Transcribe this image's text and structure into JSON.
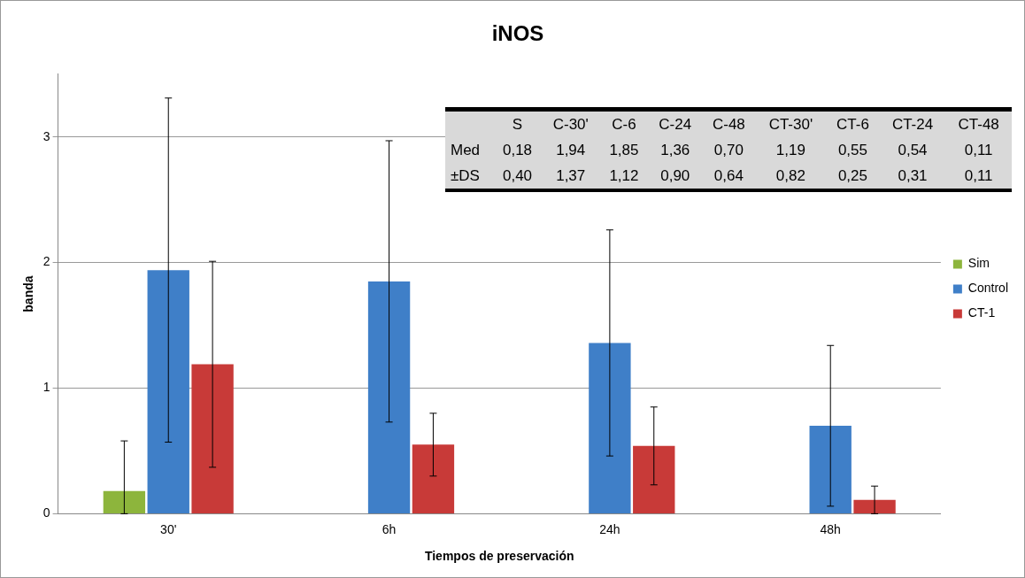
{
  "chart_data": [
    {
      "type": "bar",
      "title": "iNOS",
      "xlabel": "Tiempos de preservación",
      "ylabel": "banda",
      "categories": [
        "30'",
        "6h",
        "24h",
        "48h"
      ],
      "series": [
        {
          "name": "Sim",
          "color": "#8db53c",
          "values": [
            0.18,
            null,
            null,
            null
          ],
          "errors": [
            [
              0,
              0.58
            ],
            null,
            null,
            null
          ]
        },
        {
          "name": "Control",
          "color": "#3f7fc8",
          "values": [
            1.94,
            1.85,
            1.36,
            0.7
          ],
          "errors": [
            1.37,
            1.12,
            0.9,
            0.64
          ]
        },
        {
          "name": "CT-1",
          "color": "#c83a38",
          "values": [
            1.19,
            0.55,
            0.54,
            0.11
          ],
          "errors": [
            0.82,
            0.25,
            0.31,
            0.11
          ]
        }
      ],
      "ylim": [
        0,
        3.5
      ],
      "yticks": [
        0,
        1,
        2,
        3
      ],
      "grid": "y",
      "legend": "right"
    },
    {
      "type": "other",
      "categories": [
        "S",
        "C-30'",
        "C-6",
        "C-24",
        "C-48",
        "CT-30'",
        "CT-6",
        "CT-24",
        "CT-48"
      ],
      "y_categories": [
        "Med",
        "±DS"
      ],
      "cell_labels": [
        [
          "0,18",
          "1,94",
          "1,85",
          "1,36",
          "0,70",
          "1,19",
          "0,55",
          "0,54",
          "0,11"
        ],
        [
          "0,40",
          "1,37",
          "1,12",
          "0,90",
          "0,64",
          "0,82",
          "0,25",
          "0,31",
          "0,11"
        ]
      ]
    }
  ]
}
